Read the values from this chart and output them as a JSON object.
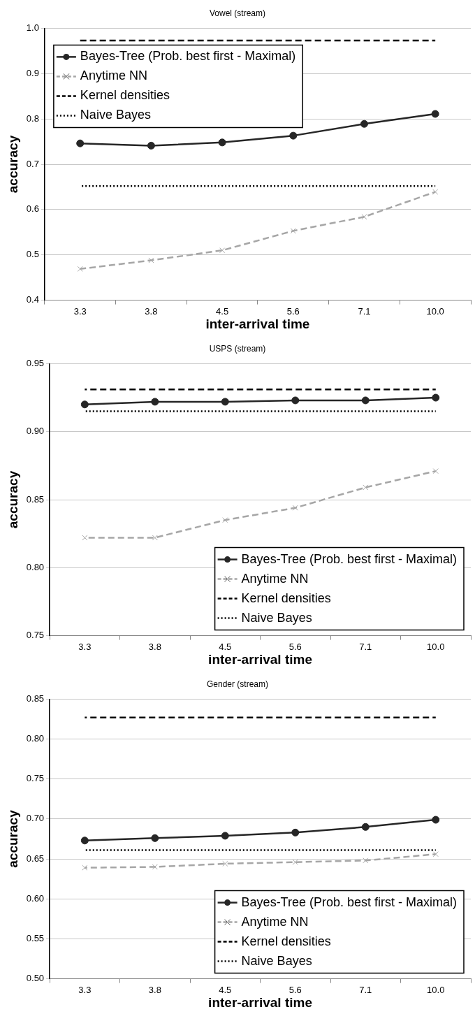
{
  "chart_data": [
    {
      "type": "line",
      "title": "Vowel (stream)",
      "xlabel": "inter-arrival time",
      "ylabel": "accuracy",
      "categories": [
        "3.3",
        "3.8",
        "4.5",
        "5.6",
        "7.1",
        "10.0"
      ],
      "ylim": [
        0.4,
        1.0
      ],
      "yticks": [
        0.4,
        0.5,
        0.6,
        0.7,
        0.8,
        0.9,
        {
          "value": 1.0,
          "label": "1.0"
        }
      ],
      "grid": "y",
      "legend": "top left",
      "series": [
        {
          "name": "Bayes-Tree (Prob. best first - Maximal)",
          "color": "#262626",
          "marker": "circle",
          "line_style": "solid",
          "values": [
            0.746,
            0.741,
            0.748,
            0.763,
            0.789,
            0.811
          ]
        },
        {
          "name": "Anytime NN",
          "color": "#a6a6a6",
          "marker": "cross",
          "line_style": "dashed",
          "values": [
            0.469,
            0.488,
            0.51,
            0.553,
            0.584,
            0.639
          ]
        },
        {
          "name": "Kernel densities",
          "color": "#000000",
          "marker": "none",
          "line_style": "dashed",
          "values": [
            0.973,
            0.973,
            0.973,
            0.973,
            0.973,
            0.973
          ]
        },
        {
          "name": "Naive Bayes",
          "color": "#000000",
          "marker": "none",
          "line_style": "dotted",
          "values": [
            0.652,
            0.652,
            0.652,
            0.652,
            0.652,
            0.652
          ]
        }
      ]
    },
    {
      "type": "line",
      "title": "USPS (stream)",
      "xlabel": "inter-arrival time",
      "ylabel": "accuracy",
      "categories": [
        "3.3",
        "3.8",
        "4.5",
        "5.6",
        "7.1",
        "10.0"
      ],
      "ylim": [
        0.75,
        0.95
      ],
      "yticks": [
        0.75,
        {
          "value": 0.8,
          "label": "0.80"
        },
        0.85,
        {
          "value": 0.9,
          "label": "0.90"
        },
        0.95
      ],
      "grid": "y",
      "legend": "bottom right",
      "series": [
        {
          "name": "Bayes-Tree (Prob. best first - Maximal)",
          "color": "#262626",
          "marker": "circle",
          "line_style": "solid",
          "values": [
            0.92,
            0.922,
            0.922,
            0.923,
            0.923,
            0.925
          ]
        },
        {
          "name": "Anytime NN",
          "color": "#a6a6a6",
          "marker": "cross",
          "line_style": "dashed",
          "values": [
            0.822,
            0.822,
            0.835,
            0.844,
            0.859,
            0.871
          ]
        },
        {
          "name": "Kernel densities",
          "color": "#000000",
          "marker": "none",
          "line_style": "dashed",
          "values": [
            0.931,
            0.931,
            0.931,
            0.931,
            0.931,
            0.931
          ]
        },
        {
          "name": "Naive Bayes",
          "color": "#000000",
          "marker": "none",
          "line_style": "dotted",
          "values": [
            0.915,
            0.915,
            0.915,
            0.915,
            0.915,
            0.915
          ]
        }
      ]
    },
    {
      "type": "line",
      "title": "Gender (stream)",
      "xlabel": "inter-arrival time",
      "ylabel": "accuracy",
      "categories": [
        "3.3",
        "3.8",
        "4.5",
        "5.6",
        "7.1",
        "10.0"
      ],
      "ylim": [
        0.5,
        0.85
      ],
      "yticks": [
        {
          "value": 0.5,
          "label": "0.50"
        },
        0.55,
        {
          "value": 0.6,
          "label": "0.60"
        },
        0.65,
        {
          "value": 0.7,
          "label": "0.70"
        },
        0.75,
        {
          "value": 0.8,
          "label": "0.80"
        },
        0.85
      ],
      "grid": "y",
      "legend": "bottom right",
      "series": [
        {
          "name": "Bayes-Tree (Prob. best first - Maximal)",
          "color": "#262626",
          "marker": "circle",
          "line_style": "solid",
          "values": [
            0.673,
            0.676,
            0.679,
            0.683,
            0.69,
            0.699
          ]
        },
        {
          "name": "Anytime NN",
          "color": "#a6a6a6",
          "marker": "cross",
          "line_style": "dashed",
          "values": [
            0.639,
            0.64,
            0.644,
            0.646,
            0.648,
            0.656
          ]
        },
        {
          "name": "Kernel densities",
          "color": "#000000",
          "marker": "none",
          "line_style": "dashed",
          "values": [
            0.827,
            0.827,
            0.827,
            0.827,
            0.827,
            0.827
          ]
        },
        {
          "name": "Naive Bayes",
          "color": "#000000",
          "marker": "none",
          "line_style": "dotted",
          "values": [
            0.661,
            0.661,
            0.661,
            0.661,
            0.661,
            0.661
          ]
        }
      ]
    }
  ]
}
